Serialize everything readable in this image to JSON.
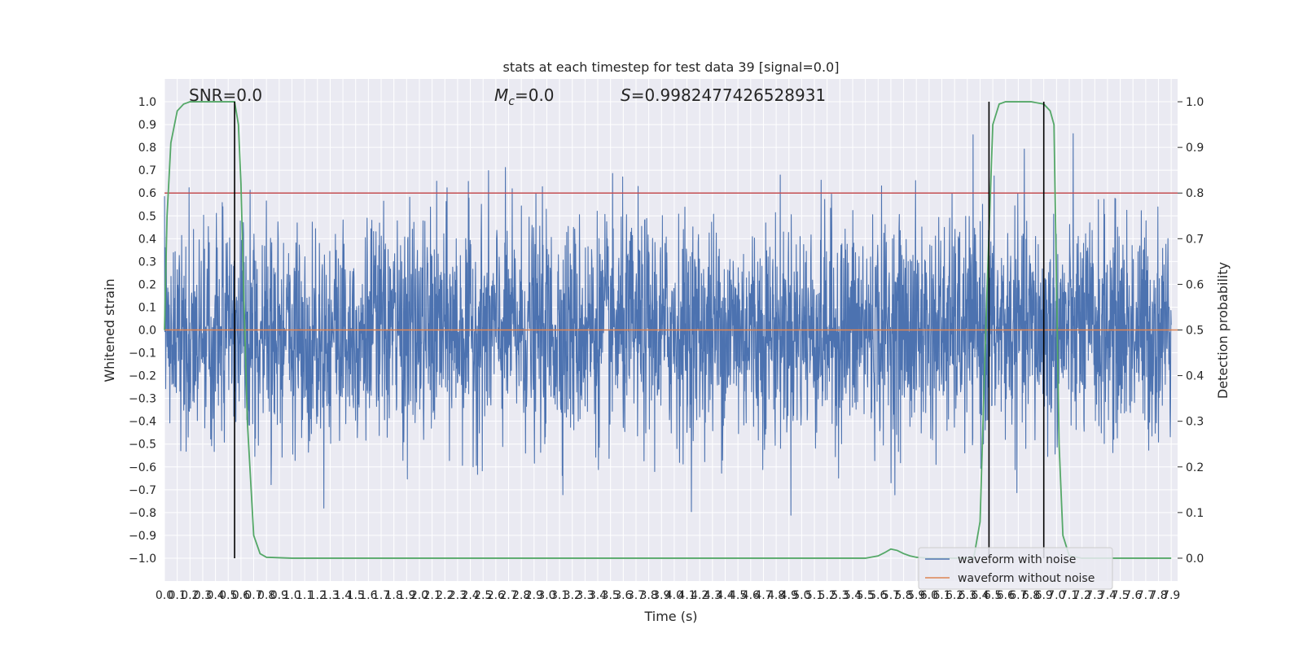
{
  "chart_data": {
    "type": "line",
    "title": "stats at each timestep for test data 39 [signal=0.0]",
    "xlabel": "Time (s)",
    "ylabel": "Whitened strain",
    "ylabel_right": "Detection probability",
    "xlim": [
      0.0,
      7.95
    ],
    "ylim": [
      -1.1,
      1.1
    ],
    "ylim_right": [
      -0.05,
      1.05
    ],
    "x_tick_step": 0.1,
    "x_tick_count": 80,
    "y_ticks": [
      -1.0,
      -0.9,
      -0.8,
      -0.7,
      -0.6,
      -0.5,
      -0.4,
      -0.3,
      -0.2,
      -0.1,
      0.0,
      0.1,
      0.2,
      0.3,
      0.4,
      0.5,
      0.6,
      0.7,
      0.8,
      0.9,
      1.0
    ],
    "y_tick_labels": [
      "−1.0",
      "−0.9",
      "−0.8",
      "−0.7",
      "−0.6",
      "−0.5",
      "−0.4",
      "−0.3",
      "−0.2",
      "−0.1",
      "0.0",
      "0.1",
      "0.2",
      "0.3",
      "0.4",
      "0.5",
      "0.6",
      "0.7",
      "0.8",
      "0.9",
      "1.0"
    ],
    "y_ticks_right": [
      0.0,
      0.1,
      0.2,
      0.3,
      0.4,
      0.5,
      0.6,
      0.7,
      0.8,
      0.9,
      1.0
    ],
    "y_tick_labels_right": [
      "0.0",
      "0.1",
      "0.2",
      "0.3",
      "0.4",
      "0.5",
      "0.6",
      "0.7",
      "0.8",
      "0.9",
      "1.0"
    ],
    "grid": true,
    "legend_position": "lower-right",
    "annotations": {
      "snr": "SNR=0.0",
      "mc_symbol": "M",
      "mc_sub": "c",
      "mc_value": "=0.0",
      "s_symbol": "S",
      "s_value": "=0.9982477426528931"
    },
    "series": [
      {
        "name": "waveform with noise",
        "color": "#4c72b0",
        "kind": "noise",
        "amplitude_envelope": 1.0,
        "sample_rate": 2048
      },
      {
        "name": "waveform without noise",
        "color": "#dd8452",
        "values_y": 0.0
      },
      {
        "name": "detection probability",
        "color": "#55a868",
        "axis": "right",
        "x": [
          0.0,
          0.02,
          0.05,
          0.1,
          0.15,
          0.2,
          0.3,
          0.4,
          0.5,
          0.55,
          0.58,
          0.6,
          0.62,
          0.65,
          0.7,
          0.75,
          0.8,
          1.0,
          2.0,
          3.0,
          4.0,
          5.0,
          5.5,
          5.6,
          5.65,
          5.7,
          5.75,
          5.8,
          5.85,
          5.9,
          6.0,
          6.2,
          6.35,
          6.4,
          6.45,
          6.5,
          6.55,
          6.6,
          6.65,
          6.7,
          6.8,
          6.9,
          6.95,
          6.98,
          7.0,
          7.02,
          7.05,
          7.1,
          7.2,
          7.5,
          7.9
        ],
        "y": [
          0.5,
          0.75,
          0.91,
          0.98,
          0.995,
          1.0,
          1.0,
          1.0,
          1.0,
          1.0,
          0.95,
          0.82,
          0.6,
          0.3,
          0.05,
          0.01,
          0.002,
          0.0,
          0.0,
          0.0,
          0.0,
          0.0,
          0.0,
          0.005,
          0.012,
          0.02,
          0.017,
          0.01,
          0.005,
          0.002,
          0.0,
          0.0,
          0.0,
          0.08,
          0.55,
          0.95,
          0.995,
          1.0,
          1.0,
          1.0,
          1.0,
          0.995,
          0.98,
          0.95,
          0.6,
          0.25,
          0.05,
          0.005,
          0.0,
          0.0,
          0.0
        ]
      }
    ],
    "threshold_line": {
      "y": 0.8,
      "color": "#c44e52"
    },
    "vertical_lines": [
      {
        "x": 0.55,
        "color": "#000000"
      },
      {
        "x": 6.47,
        "color": "#000000"
      },
      {
        "x": 6.9,
        "color": "#000000"
      }
    ]
  }
}
